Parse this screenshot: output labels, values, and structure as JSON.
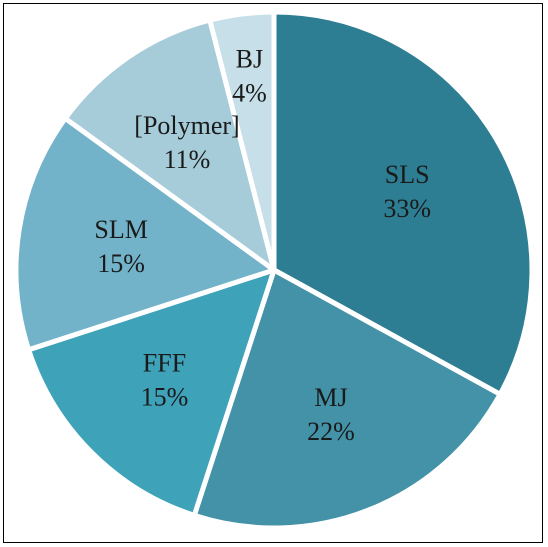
{
  "chart_data": {
    "type": "pie",
    "title": "",
    "start_angle_deg": 0,
    "direction": "clockwise",
    "legend": "none",
    "slices": [
      {
        "name": "SLS",
        "value": 33,
        "label": "33%",
        "color": "#2e7e93"
      },
      {
        "name": "MJ",
        "value": 22,
        "label": "22%",
        "color": "#4392a7"
      },
      {
        "name": "FFF",
        "value": 15,
        "label": "15%",
        "color": "#3ea2b9"
      },
      {
        "name": "SLM",
        "value": 15,
        "label": "15%",
        "color": "#73b3ca"
      },
      {
        "name": "[Polymer]",
        "value": 11,
        "label": "11%",
        "color": "#a6cbd9"
      },
      {
        "name": "BJ",
        "value": 4,
        "label": "4%",
        "color": "#c7dfe8"
      }
    ],
    "separator_color": "#ffffff"
  }
}
